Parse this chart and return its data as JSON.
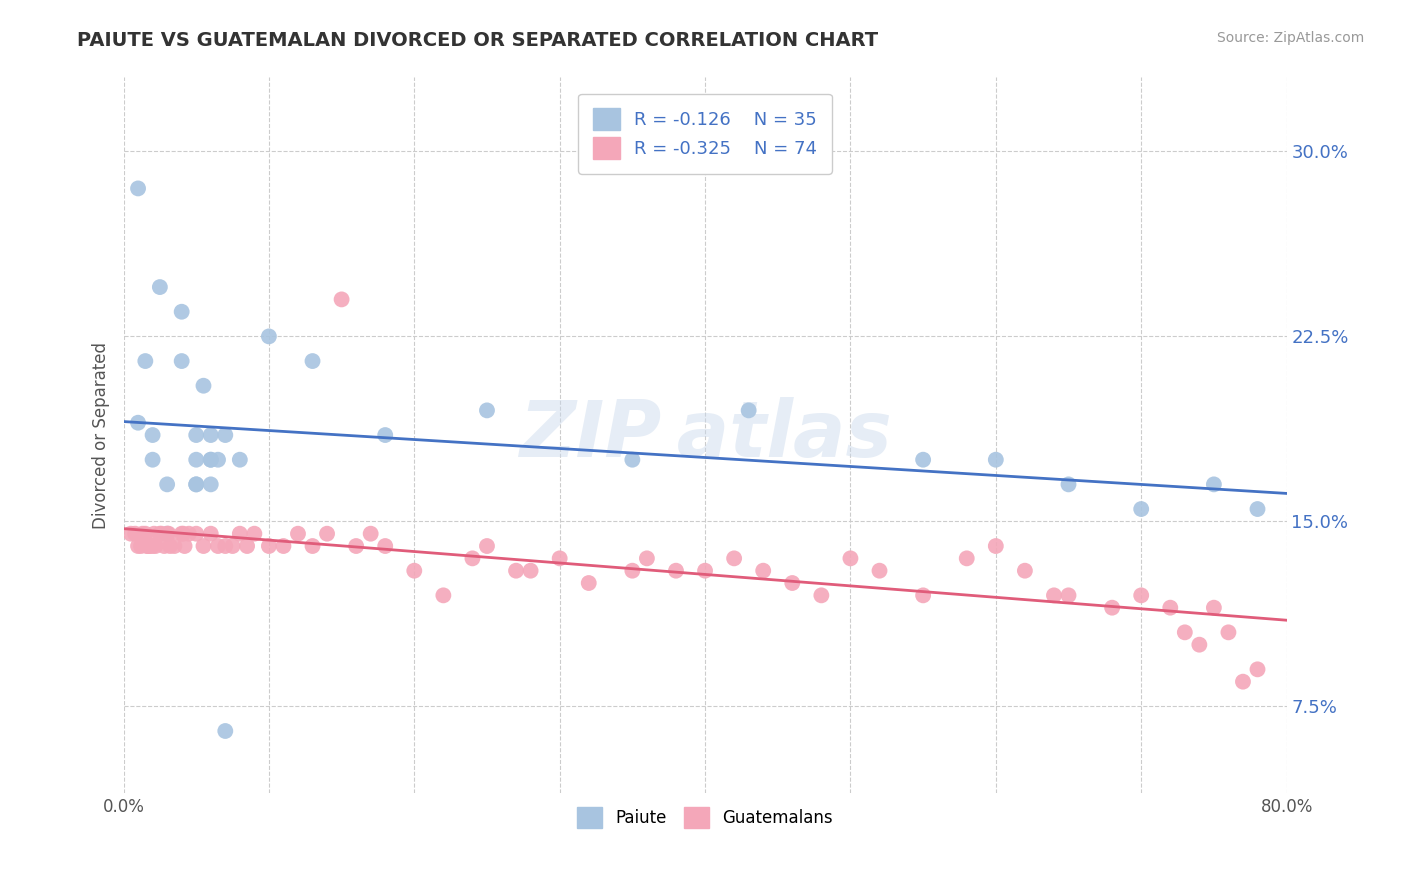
{
  "title": "PAIUTE VS GUATEMALAN DIVORCED OR SEPARATED CORRELATION CHART",
  "source": "Source: ZipAtlas.com",
  "ylabel": "Divorced or Separated",
  "xlim": [
    0.0,
    0.8
  ],
  "ylim": [
    0.04,
    0.33
  ],
  "yticks": [
    0.075,
    0.15,
    0.225,
    0.3
  ],
  "ytick_labels": [
    "7.5%",
    "15.0%",
    "22.5%",
    "30.0%"
  ],
  "xticks": [
    0.0,
    0.1,
    0.2,
    0.3,
    0.4,
    0.5,
    0.6,
    0.7,
    0.8
  ],
  "xtick_labels": [
    "0.0%",
    "",
    "",
    "",
    "",
    "",
    "",
    "",
    "80.0%"
  ],
  "legend_r1": "R = -0.126",
  "legend_n1": "N = 35",
  "legend_r2": "R = -0.325",
  "legend_n2": "N = 74",
  "paiute_color": "#a8c4e0",
  "guatemalan_color": "#f4a7b9",
  "paiute_line_color": "#4472C4",
  "guatemalan_line_color": "#E05C7A",
  "background_color": "#ffffff",
  "grid_color": "#cccccc",
  "paiute_x": [
    0.01,
    0.01,
    0.015,
    0.02,
    0.025,
    0.03,
    0.04,
    0.04,
    0.05,
    0.05,
    0.05,
    0.055,
    0.06,
    0.06,
    0.065,
    0.07,
    0.08,
    0.1,
    0.13,
    0.18,
    0.25,
    0.35,
    0.43,
    0.55,
    0.6,
    0.65,
    0.7,
    0.75,
    0.78,
    0.02,
    0.03,
    0.05,
    0.06,
    0.06,
    0.07
  ],
  "paiute_y": [
    0.285,
    0.19,
    0.215,
    0.185,
    0.245,
    0.165,
    0.235,
    0.215,
    0.185,
    0.175,
    0.165,
    0.205,
    0.185,
    0.175,
    0.175,
    0.185,
    0.175,
    0.225,
    0.215,
    0.185,
    0.195,
    0.175,
    0.195,
    0.175,
    0.175,
    0.165,
    0.155,
    0.165,
    0.155,
    0.175,
    0.145,
    0.165,
    0.175,
    0.165,
    0.065
  ],
  "guatemalan_x": [
    0.005,
    0.008,
    0.01,
    0.012,
    0.013,
    0.015,
    0.016,
    0.017,
    0.018,
    0.02,
    0.021,
    0.022,
    0.025,
    0.026,
    0.028,
    0.03,
    0.031,
    0.032,
    0.035,
    0.04,
    0.041,
    0.042,
    0.045,
    0.05,
    0.055,
    0.06,
    0.065,
    0.07,
    0.075,
    0.08,
    0.085,
    0.09,
    0.1,
    0.11,
    0.12,
    0.13,
    0.14,
    0.15,
    0.16,
    0.17,
    0.18,
    0.2,
    0.22,
    0.24,
    0.25,
    0.27,
    0.28,
    0.3,
    0.32,
    0.35,
    0.36,
    0.38,
    0.4,
    0.42,
    0.44,
    0.46,
    0.48,
    0.5,
    0.52,
    0.55,
    0.58,
    0.6,
    0.62,
    0.64,
    0.65,
    0.68,
    0.7,
    0.72,
    0.73,
    0.74,
    0.75,
    0.76,
    0.77,
    0.78
  ],
  "guatemalan_y": [
    0.145,
    0.145,
    0.14,
    0.14,
    0.145,
    0.145,
    0.14,
    0.14,
    0.14,
    0.14,
    0.145,
    0.14,
    0.145,
    0.145,
    0.14,
    0.145,
    0.145,
    0.14,
    0.14,
    0.145,
    0.145,
    0.14,
    0.145,
    0.145,
    0.14,
    0.145,
    0.14,
    0.14,
    0.14,
    0.145,
    0.14,
    0.145,
    0.14,
    0.14,
    0.145,
    0.14,
    0.145,
    0.24,
    0.14,
    0.145,
    0.14,
    0.13,
    0.12,
    0.135,
    0.14,
    0.13,
    0.13,
    0.135,
    0.125,
    0.13,
    0.135,
    0.13,
    0.13,
    0.135,
    0.13,
    0.125,
    0.12,
    0.135,
    0.13,
    0.12,
    0.135,
    0.14,
    0.13,
    0.12,
    0.12,
    0.115,
    0.12,
    0.115,
    0.105,
    0.1,
    0.115,
    0.105,
    0.085,
    0.09
  ]
}
